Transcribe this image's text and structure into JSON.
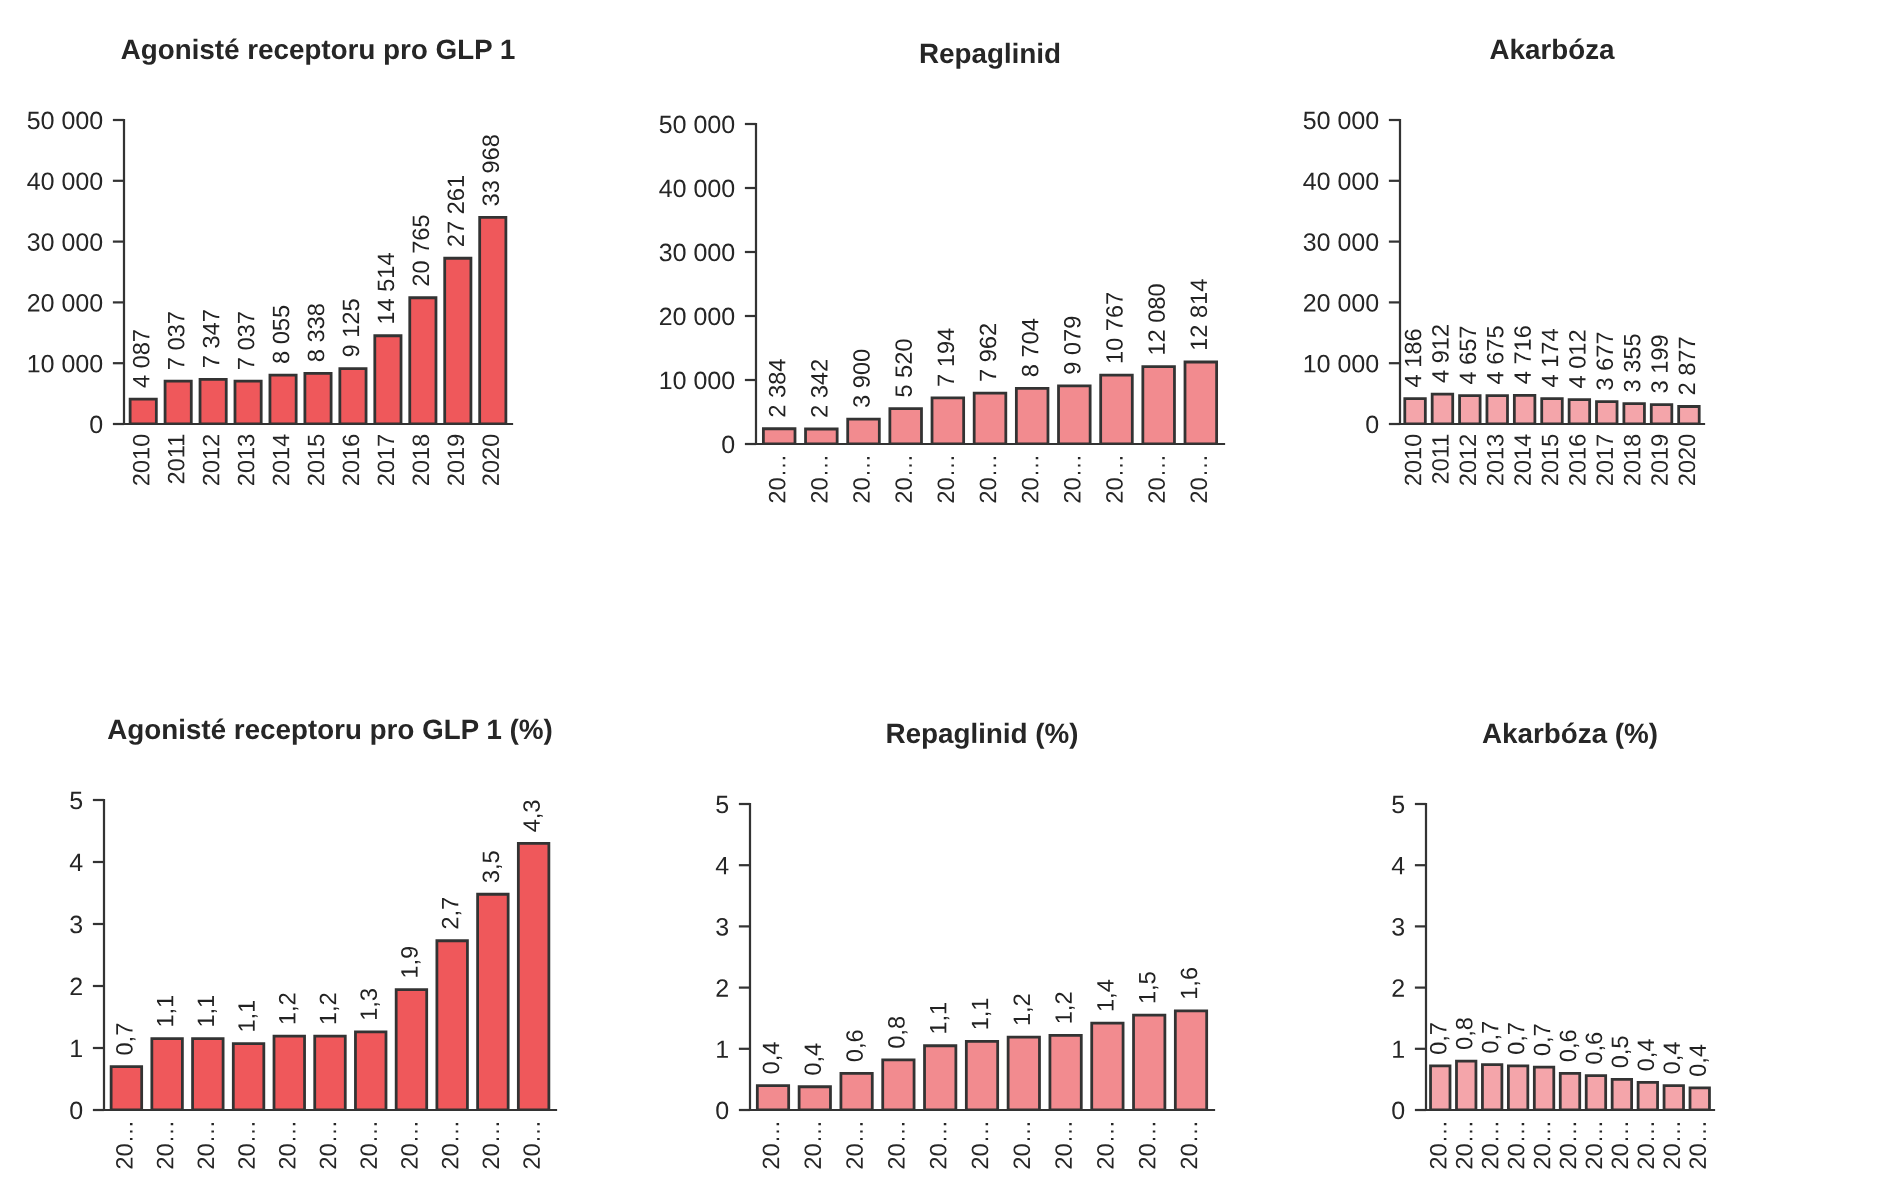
{
  "chart_data": [
    {
      "type": "bar",
      "title": "Agonisté receptoru pro GLP 1",
      "categories": [
        "2010",
        "2011",
        "2012",
        "2013",
        "2014",
        "2015",
        "2016",
        "2017",
        "2018",
        "2019",
        "2020"
      ],
      "values": [
        4087,
        7037,
        7347,
        7037,
        8055,
        8338,
        9125,
        14514,
        20765,
        27261,
        33968
      ],
      "value_labels": [
        "4 087",
        "7 037",
        "7 347",
        "7 037",
        "8 055",
        "8 338",
        "9 125",
        "14 514",
        "20 765",
        "27 261",
        "33 968"
      ],
      "color": "#ef585b",
      "ylim": [
        0,
        50000
      ],
      "yticks": [
        {
          "value": 0,
          "label": "0"
        },
        {
          "value": 10000,
          "label": "10 000"
        },
        {
          "value": 20000,
          "label": "20 000"
        },
        {
          "value": 30000,
          "label": "30 000"
        },
        {
          "value": 40000,
          "label": "40 000"
        },
        {
          "value": 50000,
          "label": "50 000"
        }
      ]
    },
    {
      "type": "bar",
      "title": "Repaglinid",
      "categories": [
        "20…",
        "20…",
        "20…",
        "20…",
        "20…",
        "20…",
        "20…",
        "20…",
        "20…",
        "20…",
        "20…"
      ],
      "values": [
        2384,
        2342,
        3900,
        5520,
        7194,
        7962,
        8704,
        9079,
        10767,
        12080,
        12814
      ],
      "value_labels": [
        "2 384",
        "2 342",
        "3 900",
        "5 520",
        "7 194",
        "7 962",
        "8 704",
        "9 079",
        "10 767",
        "12 080",
        "12 814"
      ],
      "color": "#f28b8f",
      "ylim": [
        0,
        50000
      ],
      "yticks": [
        {
          "value": 0,
          "label": "0"
        },
        {
          "value": 10000,
          "label": "10 000"
        },
        {
          "value": 20000,
          "label": "20 000"
        },
        {
          "value": 30000,
          "label": "30 000"
        },
        {
          "value": 40000,
          "label": "40 000"
        },
        {
          "value": 50000,
          "label": "50 000"
        }
      ]
    },
    {
      "type": "bar",
      "title": "Akarbóza",
      "categories": [
        "2010",
        "2011",
        "2012",
        "2013",
        "2014",
        "2015",
        "2016",
        "2017",
        "2018",
        "2019",
        "2020"
      ],
      "values": [
        4186,
        4912,
        4657,
        4675,
        4716,
        4174,
        4012,
        3677,
        3355,
        3199,
        2877
      ],
      "value_labels": [
        "4 186",
        "4 912",
        "4 657",
        "4 675",
        "4 716",
        "4 174",
        "4 012",
        "3 677",
        "3 355",
        "3 199",
        "2 877"
      ],
      "color": "#f4a5aa",
      "ylim": [
        0,
        50000
      ],
      "yticks": [
        {
          "value": 0,
          "label": "0"
        },
        {
          "value": 10000,
          "label": "10 000"
        },
        {
          "value": 20000,
          "label": "20 000"
        },
        {
          "value": 30000,
          "label": "30 000"
        },
        {
          "value": 40000,
          "label": "40 000"
        },
        {
          "value": 50000,
          "label": "50 000"
        }
      ]
    },
    {
      "type": "bar",
      "title": "Agonisté receptoru pro GLP 1 (%)",
      "categories": [
        "20…",
        "20…",
        "20…",
        "20…",
        "20…",
        "20…",
        "20…",
        "20…",
        "20…",
        "20…",
        "20…"
      ],
      "values": [
        0.7,
        1.15,
        1.15,
        1.07,
        1.19,
        1.19,
        1.26,
        1.94,
        2.73,
        3.48,
        4.3
      ],
      "value_labels": [
        "0,7",
        "1,1",
        "1,1",
        "1,1",
        "1,2",
        "1,2",
        "1,3",
        "1,9",
        "2,7",
        "3,5",
        "4,3"
      ],
      "color": "#ef585b",
      "ylim": [
        0,
        5
      ],
      "yticks": [
        0,
        1,
        2,
        3,
        4,
        5
      ]
    },
    {
      "type": "bar",
      "title": "Repaglinid (%)",
      "categories": [
        "20…",
        "20…",
        "20…",
        "20…",
        "20…",
        "20…",
        "20…",
        "20…",
        "20…",
        "20…",
        "20…"
      ],
      "values": [
        0.4,
        0.38,
        0.6,
        0.82,
        1.05,
        1.12,
        1.19,
        1.22,
        1.42,
        1.55,
        1.62
      ],
      "value_labels": [
        "0,4",
        "0,4",
        "0,6",
        "0,8",
        "1,1",
        "1,1",
        "1,2",
        "1,2",
        "1,4",
        "1,5",
        "1,6"
      ],
      "color": "#f28b8f",
      "ylim": [
        0,
        5
      ],
      "yticks": [
        0,
        1,
        2,
        3,
        4,
        5
      ]
    },
    {
      "type": "bar",
      "title": "Akarbóza (%)",
      "categories": [
        "20…",
        "20…",
        "20…",
        "20…",
        "20…",
        "20…",
        "20…",
        "20…",
        "20…",
        "20…",
        "20…"
      ],
      "values": [
        0.72,
        0.8,
        0.74,
        0.72,
        0.7,
        0.6,
        0.56,
        0.5,
        0.45,
        0.4,
        0.36
      ],
      "value_labels": [
        "0,7",
        "0,8",
        "0,7",
        "0,7",
        "0,7",
        "0,6",
        "0,6",
        "0,5",
        "0,4",
        "0,4",
        "0,4"
      ],
      "color": "#f4a5aa",
      "ylim": [
        0,
        5
      ],
      "yticks": [
        0,
        1,
        2,
        3,
        4,
        5
      ]
    }
  ]
}
